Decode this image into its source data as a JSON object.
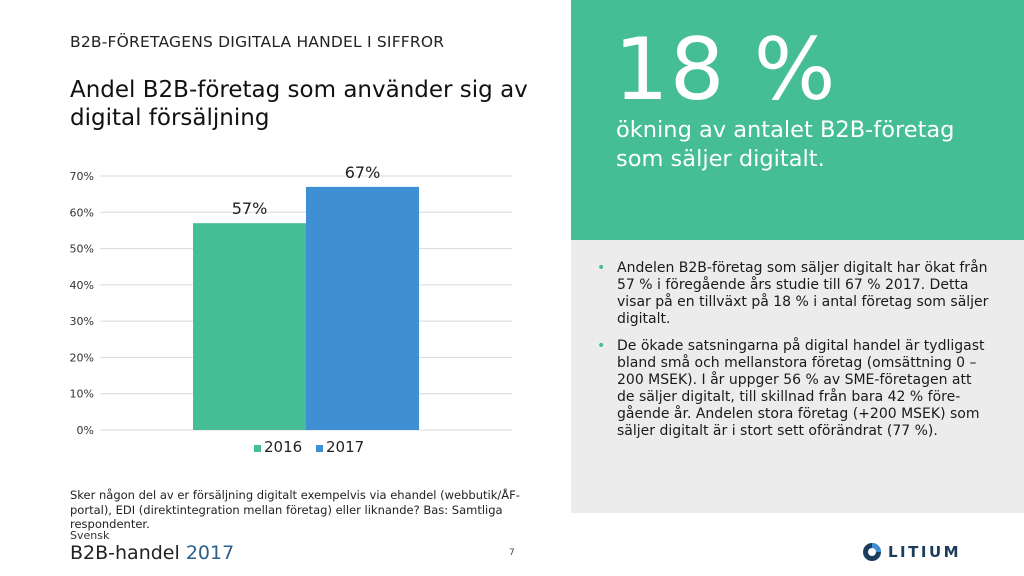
{
  "kicker": "B2B-FÖRETAGENS DIGITALA HANDEL I SIFFROR",
  "title": "Andel B2B-företag som använder sig av digital försäljning",
  "chart_data": {
    "type": "bar",
    "title": "Andel B2B-företag som använder sig av digital försäljning",
    "categories": [
      ""
    ],
    "series": [
      {
        "name": "2016",
        "values": [
          57
        ],
        "label": "57%",
        "color": "#45be95"
      },
      {
        "name": "2017",
        "values": [
          67
        ],
        "label": "67%",
        "color": "#3f8fd4"
      }
    ],
    "ylim": [
      0,
      70
    ],
    "yticks": [
      "0%",
      "10%",
      "20%",
      "30%",
      "40%",
      "50%",
      "60%",
      "70%"
    ],
    "grid": true,
    "legend": "bottom"
  },
  "footnote": "Sker någon del av er försäljning digitalt exempelvis via ehandel (webbutik/ÅF-portal), EDI (direktintegration mellan företag) eller liknande? Bas: Samtliga respondenter.",
  "brand": {
    "small": "Svensk",
    "name": "B2B-handel",
    "year": "2017"
  },
  "page_number": "7",
  "highlight": {
    "stat": "18 %",
    "caption": "ökning av antalet B2B-företag som säljer digitalt."
  },
  "bullets": [
    "Andelen B2B-företag som säljer digitalt har ökat från 57 % i föregående års studie till 67 % 2017. Detta visar på en tillväxt på 18 % i antal företag som säljer digitalt.",
    "De ökade satsningarna på digital handel är tydligast bland små och mellanstora företag (omsättning 0 – 200 MSEK). I år uppger 56 % av SME-företagen att de säljer digitalt, till skillnad från bara 42 % före-gående år. Andelen stora företag (+200 MSEK) som säljer digitalt är i stort sett oförändrat (77 %)."
  ],
  "logo": {
    "text": "LITIUM",
    "icon": "litium-logo-icon"
  },
  "colors": {
    "accent_green": "#45be95",
    "accent_blue": "#3f8fd4",
    "panel_grey": "#ececec"
  }
}
